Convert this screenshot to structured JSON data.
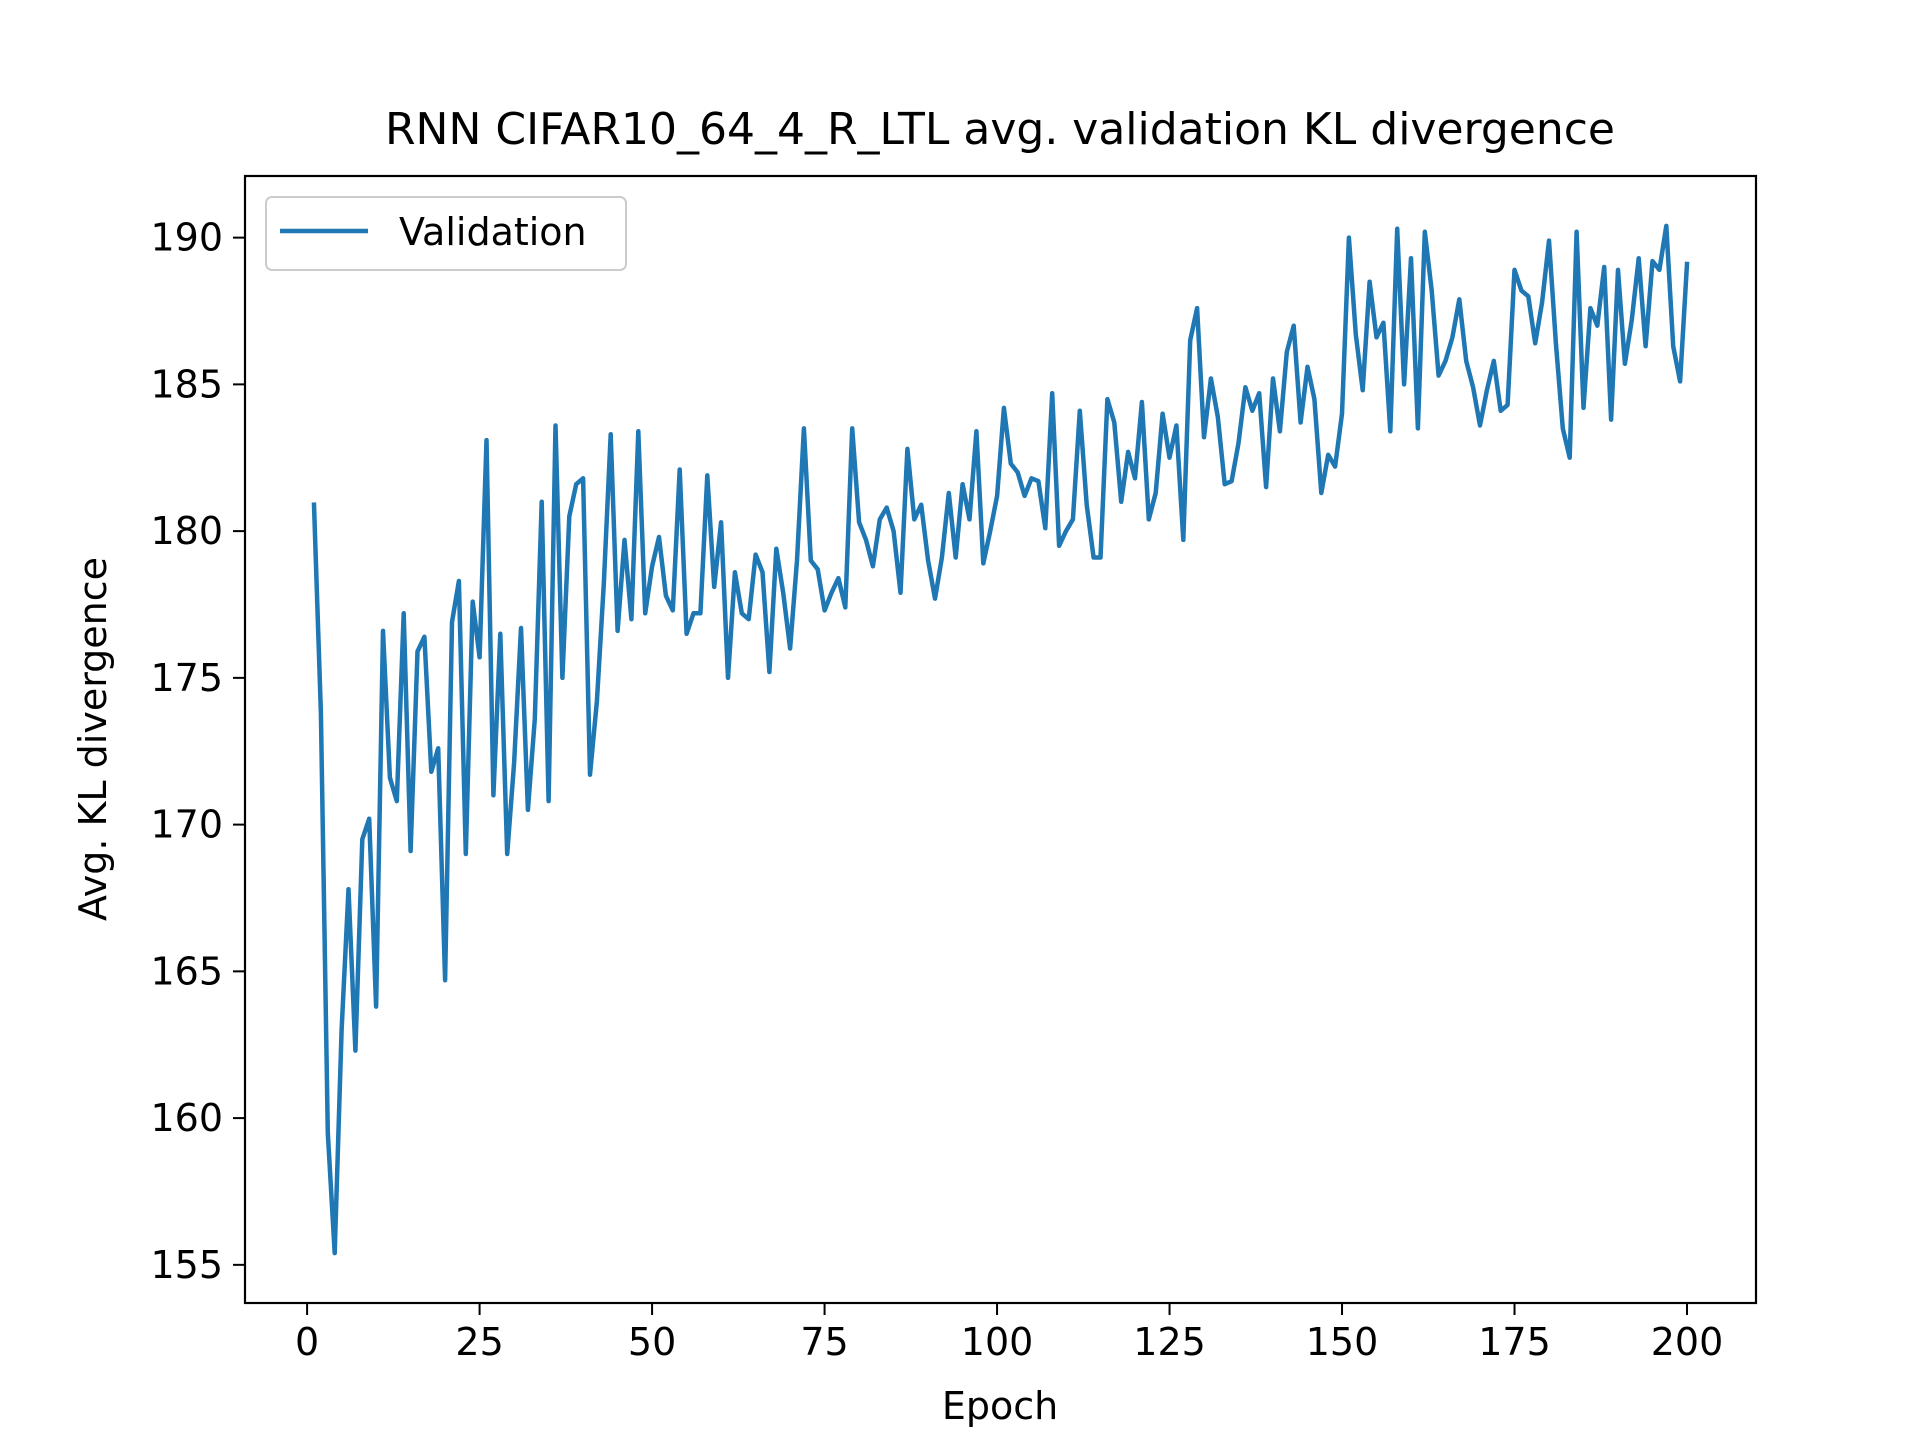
{
  "chart_data": {
    "type": "line",
    "title": "RNN CIFAR10_64_4_R_LTL avg. validation KL divergence",
    "xlabel": "Epoch",
    "ylabel": "Avg. KL divergence",
    "xlim": [
      -9,
      210
    ],
    "ylim": [
      153.7,
      192.1
    ],
    "xticks": [
      0,
      25,
      50,
      75,
      100,
      125,
      150,
      175,
      200
    ],
    "yticks": [
      155,
      160,
      165,
      170,
      175,
      180,
      185,
      190
    ],
    "grid": false,
    "legend": {
      "position": "upper left",
      "entries": [
        "Validation"
      ]
    },
    "series": [
      {
        "name": "Validation",
        "color": "#1f77b4",
        "x": [
          1,
          2,
          3,
          4,
          5,
          6,
          7,
          8,
          9,
          10,
          11,
          12,
          13,
          14,
          15,
          16,
          17,
          18,
          19,
          20,
          21,
          22,
          23,
          24,
          25,
          26,
          27,
          28,
          29,
          30,
          31,
          32,
          33,
          34,
          35,
          36,
          37,
          38,
          39,
          40,
          41,
          42,
          43,
          44,
          45,
          46,
          47,
          48,
          49,
          50,
          51,
          52,
          53,
          54,
          55,
          56,
          57,
          58,
          59,
          60,
          61,
          62,
          63,
          64,
          65,
          66,
          67,
          68,
          69,
          70,
          71,
          72,
          73,
          74,
          75,
          76,
          77,
          78,
          79,
          80,
          81,
          82,
          83,
          84,
          85,
          86,
          87,
          88,
          89,
          90,
          91,
          92,
          93,
          94,
          95,
          96,
          97,
          98,
          99,
          100,
          101,
          102,
          103,
          104,
          105,
          106,
          107,
          108,
          109,
          110,
          111,
          112,
          113,
          114,
          115,
          116,
          117,
          118,
          119,
          120,
          121,
          122,
          123,
          124,
          125,
          126,
          127,
          128,
          129,
          130,
          131,
          132,
          133,
          134,
          135,
          136,
          137,
          138,
          139,
          140,
          141,
          142,
          143,
          144,
          145,
          146,
          147,
          148,
          149,
          150,
          151,
          152,
          153,
          154,
          155,
          156,
          157,
          158,
          159,
          160,
          161,
          162,
          163,
          164,
          165,
          166,
          167,
          168,
          169,
          170,
          171,
          172,
          173,
          174,
          175,
          176,
          177,
          178,
          179,
          180,
          181,
          182,
          183,
          184,
          185,
          186,
          187,
          188,
          189,
          190,
          191,
          192,
          193,
          194,
          195,
          196,
          197,
          198,
          199,
          200
        ],
        "values": [
          180.9,
          173.8,
          159.5,
          155.4,
          163.0,
          167.8,
          162.3,
          169.5,
          170.2,
          163.8,
          176.6,
          171.6,
          170.8,
          177.2,
          169.1,
          175.9,
          176.4,
          171.8,
          172.6,
          164.7,
          176.9,
          178.3,
          169.0,
          177.6,
          175.7,
          183.1,
          171.0,
          176.5,
          169.0,
          172.1,
          176.7,
          170.5,
          173.6,
          181.0,
          170.8,
          183.6,
          175.0,
          180.5,
          181.6,
          181.8,
          171.7,
          174.2,
          178.2,
          183.3,
          176.6,
          179.7,
          177.0,
          183.4,
          177.2,
          178.8,
          179.8,
          177.8,
          177.3,
          182.1,
          176.5,
          177.2,
          177.2,
          181.9,
          178.1,
          180.3,
          175.0,
          178.6,
          177.2,
          177.0,
          179.2,
          178.6,
          175.2,
          179.4,
          177.9,
          176.0,
          179.0,
          183.5,
          179.0,
          178.7,
          177.3,
          177.9,
          178.4,
          177.4,
          183.5,
          180.3,
          179.7,
          178.8,
          180.4,
          180.8,
          180.0,
          177.9,
          182.8,
          180.4,
          180.9,
          179.0,
          177.7,
          179.1,
          181.3,
          179.1,
          181.6,
          180.4,
          183.4,
          178.9,
          180.0,
          181.2,
          184.2,
          182.3,
          182.0,
          181.2,
          181.8,
          181.7,
          180.1,
          184.7,
          179.5,
          180.0,
          180.4,
          184.1,
          180.9,
          179.1,
          179.1,
          184.5,
          183.7,
          181.0,
          182.7,
          181.8,
          184.4,
          180.4,
          181.3,
          184.0,
          182.5,
          183.6,
          179.7,
          186.5,
          187.6,
          183.2,
          185.2,
          183.9,
          181.6,
          181.7,
          183.0,
          184.9,
          184.1,
          184.7,
          181.5,
          185.2,
          183.4,
          186.1,
          187.0,
          183.7,
          185.6,
          184.5,
          181.3,
          182.6,
          182.2,
          184.0,
          190.0,
          186.7,
          184.8,
          188.5,
          186.6,
          187.1,
          183.4,
          190.3,
          185.0,
          189.3,
          183.5,
          190.2,
          188.2,
          185.3,
          185.8,
          186.6,
          187.9,
          185.8,
          184.9,
          183.6,
          184.8,
          185.8,
          184.1,
          184.3,
          188.9,
          188.2,
          188.0,
          186.4,
          187.8,
          189.9,
          186.4,
          183.5,
          182.5,
          190.2,
          184.2,
          187.6,
          187.0,
          189.0,
          183.8,
          188.9,
          185.7,
          187.2,
          189.3,
          186.3,
          189.2,
          188.9,
          190.4,
          186.3,
          185.1,
          189.1
        ]
      }
    ]
  }
}
